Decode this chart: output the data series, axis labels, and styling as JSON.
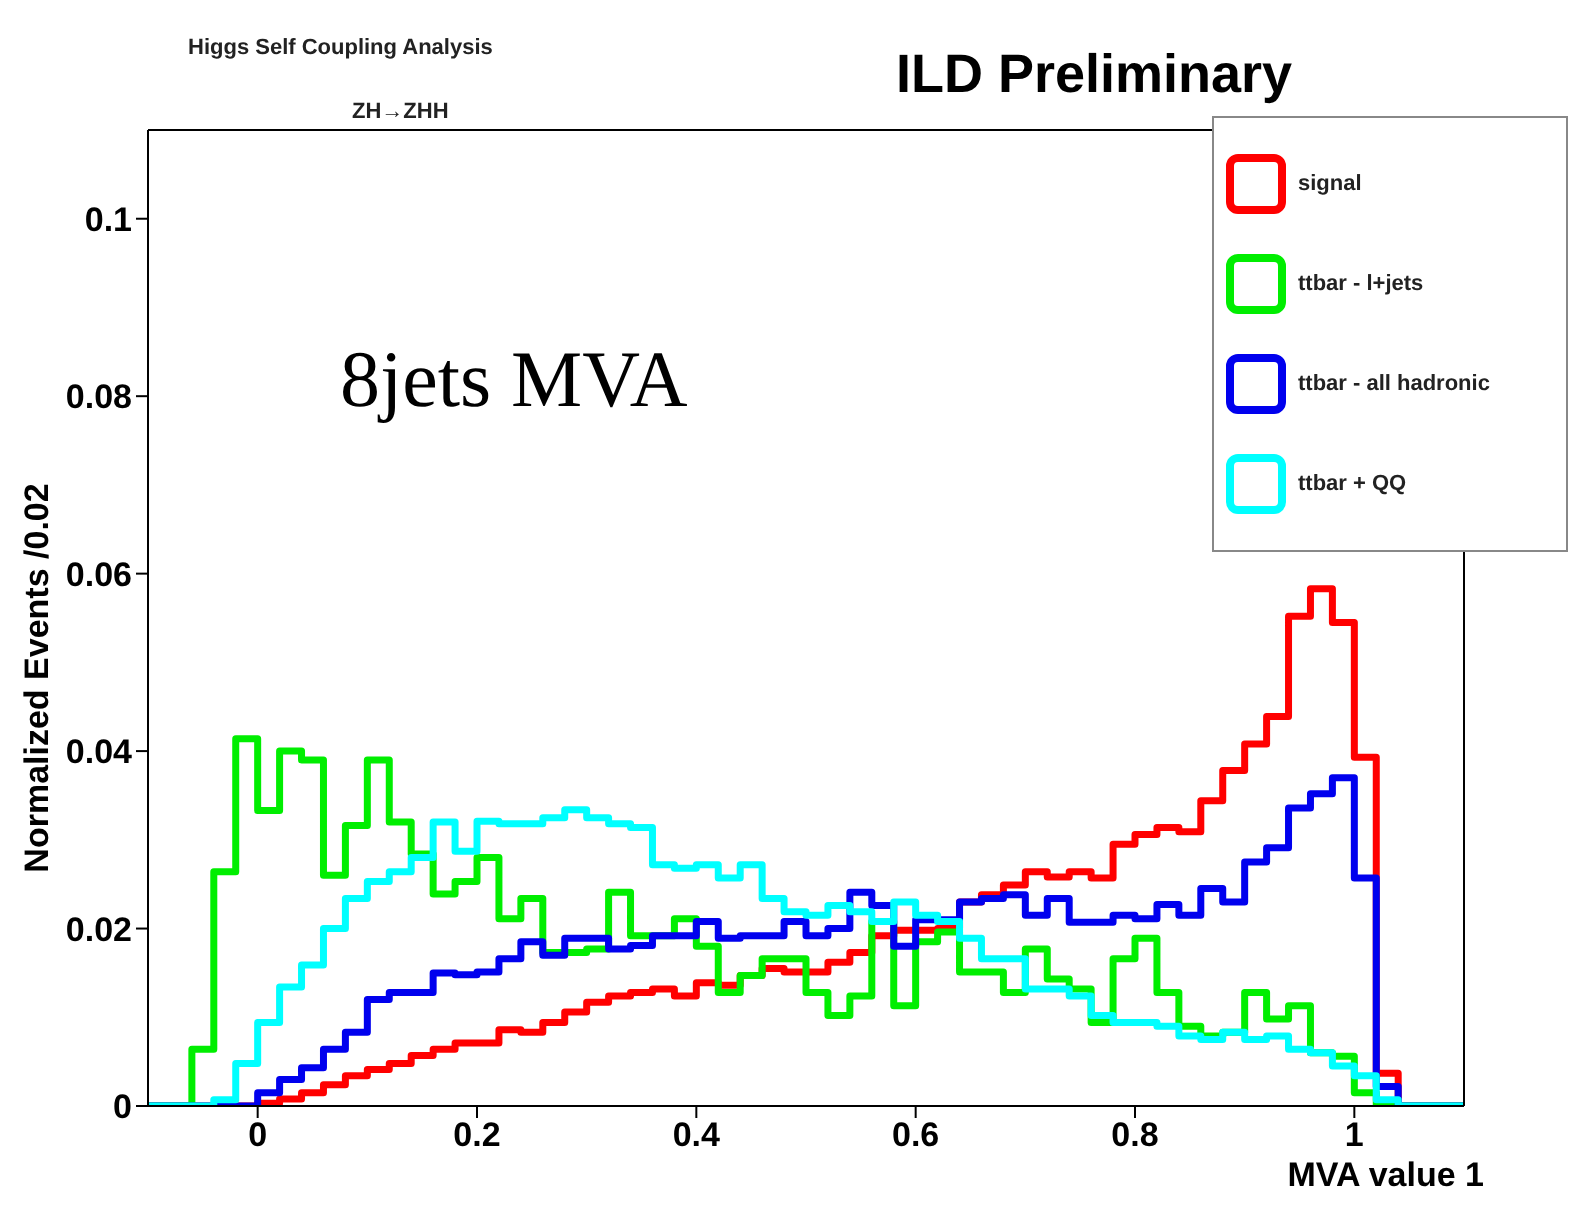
{
  "chart_data": {
    "type": "histogram",
    "title": "ILD Preliminary",
    "annotations": [
      "Higgs Self Coupling Analysis",
      "ZH→ZHH",
      "8jets MVA"
    ],
    "xlabel": "MVA value 1",
    "ylabel": "Normalized Events /0.02",
    "bins": [
      -0.1,
      -0.08,
      -0.06,
      -0.04,
      -0.02,
      0,
      0.02,
      0.04,
      0.06,
      0.08,
      0.1,
      0.12,
      0.14,
      0.16,
      0.18,
      0.2,
      0.22,
      0.24,
      0.26,
      0.28,
      0.3,
      0.32,
      0.34,
      0.36,
      0.38,
      0.4,
      0.42,
      0.44,
      0.46,
      0.48,
      0.5,
      0.52,
      0.54,
      0.56,
      0.58,
      0.6,
      0.62,
      0.64,
      0.66,
      0.68,
      0.7,
      0.72,
      0.74,
      0.76,
      0.78,
      0.8,
      0.82,
      0.84,
      0.86,
      0.88,
      0.9,
      0.92,
      0.94,
      0.96,
      0.98,
      1,
      1.02,
      1.04,
      1.06,
      1.08,
      1.1
    ],
    "series": [
      {
        "name": "signal",
        "color": "#ff0000",
        "values": [
          0,
          0,
          0,
          0,
          0,
          0.0003,
          0.0008,
          0.0015,
          0.0024,
          0.0034,
          0.0041,
          0.0048,
          0.0057,
          0.0064,
          0.0071,
          0.0071,
          0.0086,
          0.0083,
          0.0094,
          0.0106,
          0.0117,
          0.0124,
          0.0128,
          0.0132,
          0.0124,
          0.0139,
          0.0136,
          0.0147,
          0.0155,
          0.0151,
          0.0151,
          0.0162,
          0.0173,
          0.0192,
          0.0198,
          0.0198,
          0.02,
          0.023,
          0.0238,
          0.0249,
          0.0264,
          0.0258,
          0.0264,
          0.0257,
          0.0295,
          0.0306,
          0.0314,
          0.0309,
          0.0344,
          0.0378,
          0.0408,
          0.0439,
          0.0552,
          0.0583,
          0.0545,
          0.0393,
          0.0037,
          0,
          0,
          0
        ]
      },
      {
        "name": "ttbar - l+jets",
        "color": "#00ee00",
        "values": [
          0,
          0,
          0.0064,
          0.0264,
          0.0414,
          0.0333,
          0.04,
          0.039,
          0.026,
          0.0316,
          0.039,
          0.032,
          0.0284,
          0.0239,
          0.0253,
          0.028,
          0.0211,
          0.0234,
          0.0173,
          0.0173,
          0.0177,
          0.0241,
          0.0192,
          0.0192,
          0.0211,
          0.018,
          0.0128,
          0.0147,
          0.0166,
          0.0166,
          0.0128,
          0.0102,
          0.0124,
          0.0208,
          0.0113,
          0.0185,
          0.0196,
          0.0151,
          0.0151,
          0.0128,
          0.0177,
          0.0143,
          0.0132,
          0.0094,
          0.0166,
          0.0189,
          0.0128,
          0.009,
          0.0079,
          0.0083,
          0.0128,
          0.0098,
          0.0113,
          0.006,
          0.0056,
          0.0015,
          0,
          0,
          0,
          0
        ]
      },
      {
        "name": "ttbar - all hadronic",
        "color": "#0000ee",
        "values": [
          0,
          0,
          0,
          0,
          0,
          0.0015,
          0.003,
          0.0043,
          0.0064,
          0.0083,
          0.012,
          0.0128,
          0.0128,
          0.015,
          0.0148,
          0.0151,
          0.0166,
          0.0185,
          0.017,
          0.0189,
          0.0189,
          0.0177,
          0.0181,
          0.0192,
          0.0192,
          0.0208,
          0.0189,
          0.0192,
          0.0192,
          0.0208,
          0.0192,
          0.02,
          0.0241,
          0.0226,
          0.018,
          0.021,
          0.021,
          0.023,
          0.0234,
          0.0238,
          0.0215,
          0.0234,
          0.0207,
          0.0207,
          0.0215,
          0.0211,
          0.0227,
          0.0215,
          0.0245,
          0.023,
          0.0275,
          0.0291,
          0.0336,
          0.0352,
          0.037,
          0.0257,
          0.0022,
          0,
          0,
          0
        ]
      },
      {
        "name": "ttbar + QQ",
        "color": "#00ffff",
        "values": [
          0,
          0,
          0,
          0.0007,
          0.0048,
          0.0094,
          0.0134,
          0.0159,
          0.02,
          0.0234,
          0.0253,
          0.0264,
          0.028,
          0.032,
          0.0287,
          0.0321,
          0.0318,
          0.0318,
          0.0325,
          0.0334,
          0.0325,
          0.0318,
          0.0314,
          0.0272,
          0.0268,
          0.0272,
          0.0257,
          0.0272,
          0.0234,
          0.0219,
          0.0215,
          0.0226,
          0.0219,
          0.0208,
          0.023,
          0.0215,
          0.0208,
          0.0189,
          0.0166,
          0.0166,
          0.0132,
          0.0132,
          0.0124,
          0.0102,
          0.0094,
          0.0094,
          0.009,
          0.0079,
          0.0075,
          0.0083,
          0.0075,
          0.0079,
          0.0064,
          0.006,
          0.0045,
          0.0034,
          0.0007,
          0,
          0,
          0
        ]
      }
    ],
    "xlim": [
      -0.1,
      1.1
    ],
    "xticks": [
      0,
      0.2,
      0.4,
      0.6,
      0.8,
      1
    ],
    "ylim": [
      0,
      0.11
    ],
    "yticks": [
      0,
      0.02,
      0.04,
      0.06,
      0.08,
      0.1
    ],
    "legend": "top right",
    "grid": false,
    "line_style": "solid"
  }
}
